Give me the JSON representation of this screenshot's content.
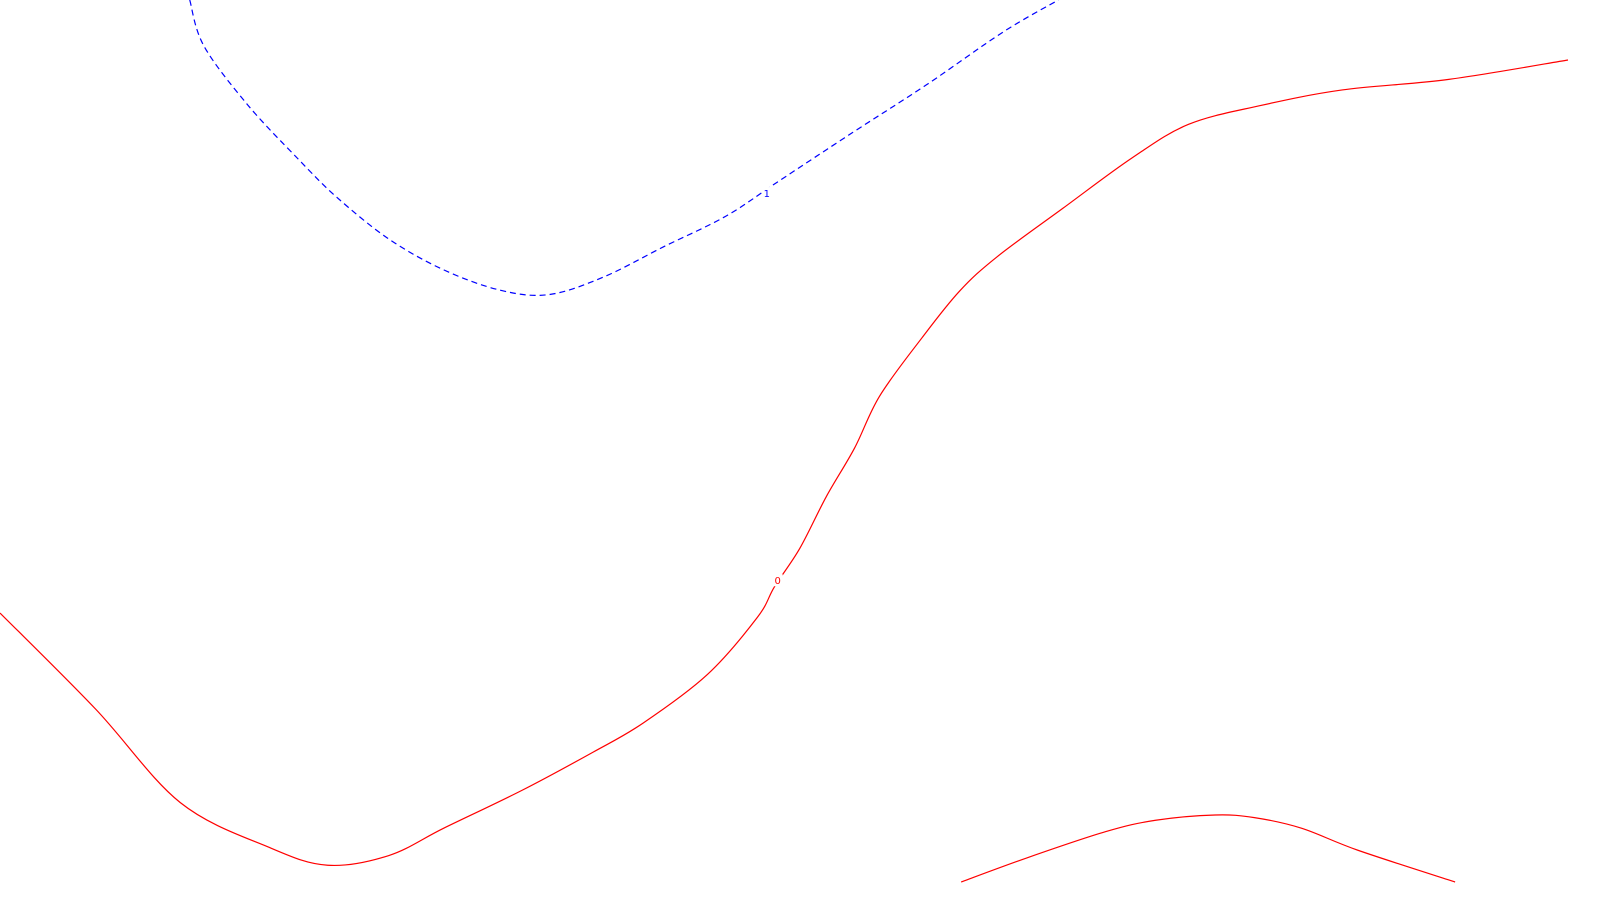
{
  "chart_data": {
    "type": "contour",
    "title": "",
    "xlabel": "",
    "ylabel": "",
    "grid": false,
    "contours": [
      {
        "level_label": "1",
        "color": "#0000ff",
        "style": "dashed",
        "lines": [
          {
            "points": [
              [
                0.121,
                1.0
              ],
              [
                0.13,
                0.948
              ],
              [
                0.158,
                0.881
              ],
              [
                0.19,
                0.82
              ],
              [
                0.215,
                0.776
              ],
              [
                0.248,
                0.729
              ],
              [
                0.283,
                0.694
              ],
              [
                0.319,
                0.671
              ],
              [
                0.35,
                0.666
              ],
              [
                0.385,
                0.686
              ],
              [
                0.423,
                0.72
              ],
              [
                0.463,
                0.755
              ],
              [
                0.497,
                0.795
              ],
              [
                0.544,
                0.85
              ],
              [
                0.591,
                0.904
              ],
              [
                0.64,
                0.964
              ],
              [
                0.675,
                1.0
              ]
            ]
          }
        ],
        "labels": [
          {
            "text": "1",
            "x": 0.489,
            "y": 0.78
          }
        ]
      },
      {
        "level_label": "0",
        "color": "#ff0000",
        "style": "solid",
        "lines": [
          {
            "points": [
              [
                0.0,
                0.305
              ],
              [
                0.061,
                0.196
              ],
              [
                0.115,
                0.09
              ],
              [
                0.172,
                0.039
              ],
              [
                0.209,
                0.019
              ],
              [
                0.248,
                0.03
              ],
              [
                0.283,
                0.061
              ],
              [
                0.333,
                0.104
              ],
              [
                0.378,
                0.147
              ],
              [
                0.41,
                0.18
              ],
              [
                0.451,
                0.235
              ],
              [
                0.483,
                0.3
              ],
              [
                0.494,
                0.335
              ],
              [
                0.51,
                0.378
              ],
              [
                0.527,
                0.437
              ],
              [
                0.545,
                0.492
              ],
              [
                0.561,
                0.551
              ],
              [
                0.588,
                0.617
              ],
              [
                0.612,
                0.67
              ],
              [
                0.636,
                0.709
              ],
              [
                0.678,
                0.764
              ],
              [
                0.722,
                0.821
              ],
              [
                0.758,
                0.859
              ],
              [
                0.803,
                0.88
              ],
              [
                0.856,
                0.898
              ],
              [
                0.924,
                0.91
              ],
              [
                1.0,
                0.932
              ]
            ]
          },
          {
            "points": [
              [
                0.613,
                0.0
              ],
              [
                0.656,
                0.028
              ],
              [
                0.705,
                0.057
              ],
              [
                0.737,
                0.07
              ],
              [
                0.775,
                0.076
              ],
              [
                0.8,
                0.073
              ],
              [
                0.83,
                0.061
              ],
              [
                0.866,
                0.036
              ],
              [
                0.928,
                0.0
              ]
            ]
          }
        ],
        "labels": [
          {
            "text": "0",
            "x": 0.496,
            "y": 0.341
          }
        ]
      }
    ]
  }
}
